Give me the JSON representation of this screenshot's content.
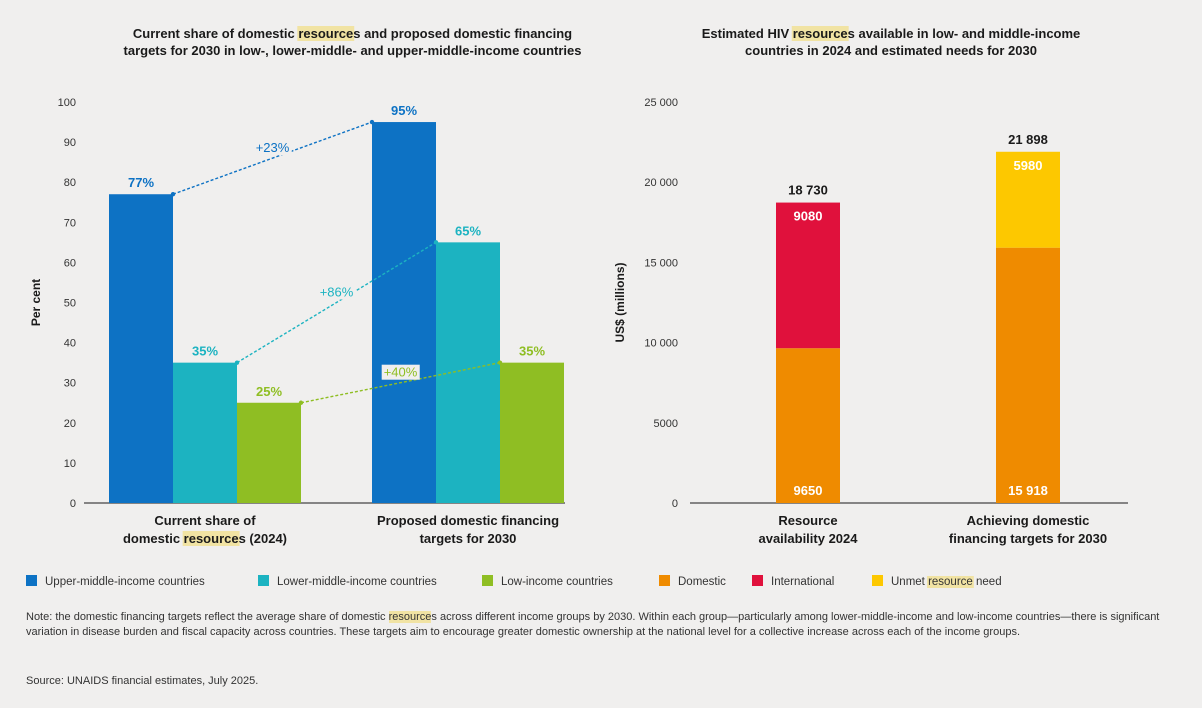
{
  "chart_data": [
    {
      "type": "bar",
      "title": "Current share of domestic resources and proposed domestic financing targets for 2030 in low-, lower-middle- and upper-middle-income countries",
      "title_lines": [
        "Current share of domestic resources and proposed domestic financing",
        "targets for 2030 in low-, lower-middle- and upper-middle-income countries"
      ],
      "ylabel": "Per cent",
      "ylim": [
        0,
        100
      ],
      "yticks": [
        0,
        10,
        20,
        30,
        40,
        50,
        60,
        70,
        80,
        90,
        100
      ],
      "categories": [
        "Current share of domestic resources (2024)",
        "Proposed domestic financing targets for 2030"
      ],
      "category_lines": [
        [
          "Current share of",
          "domestic resources (2024)"
        ],
        [
          "Proposed domestic financing",
          "targets for 2030"
        ]
      ],
      "series": [
        {
          "name": "Upper-middle-income countries",
          "color": "#0d72c4",
          "values": [
            77,
            95
          ],
          "labels": [
            "77%",
            "95%"
          ],
          "change": "+23%"
        },
        {
          "name": "Lower-middle-income countries",
          "color": "#1cb3c1",
          "values": [
            35,
            65
          ],
          "labels": [
            "35%",
            "65%"
          ],
          "change": "+86%"
        },
        {
          "name": "Low-income countries",
          "color": "#8fbe23",
          "values": [
            25,
            35
          ],
          "labels": [
            "25%",
            "35%"
          ],
          "change": "+40%"
        }
      ]
    },
    {
      "type": "bar",
      "stacked": true,
      "title": "Estimated HIV resources available in low- and middle-income countries in 2024 and estimated needs for 2030",
      "title_lines": [
        "Estimated HIV resources available in low- and middle-income",
        "countries in 2024 and estimated needs for 2030"
      ],
      "ylabel": "US$ (millions)",
      "ylim": [
        0,
        25000
      ],
      "yticks": [
        0,
        5000,
        10000,
        15000,
        20000,
        25000
      ],
      "ytick_labels": [
        "0",
        "5000",
        "10 000",
        "15 000",
        "20 000",
        "25 000"
      ],
      "categories": [
        "Resource availability 2024",
        "Achieving domestic financing targets for 2030"
      ],
      "category_lines": [
        [
          "Resource",
          "availability 2024"
        ],
        [
          "Achieving domestic",
          "financing targets for 2030"
        ]
      ],
      "series": [
        {
          "name": "Domestic",
          "color": "#ef8b00",
          "values": [
            9650,
            15918
          ],
          "labels": [
            "9650",
            "15 918"
          ]
        },
        {
          "name": "International",
          "color": "#e0113c",
          "values": [
            9080,
            0
          ],
          "labels": [
            "9080",
            ""
          ]
        },
        {
          "name": "Unmet resource need",
          "color": "#fdc800",
          "values": [
            0,
            5980
          ],
          "labels": [
            "",
            "5980"
          ]
        }
      ],
      "totals": [
        18730,
        21898
      ],
      "total_labels": [
        "18 730",
        "21 898"
      ]
    }
  ],
  "legend": [
    {
      "label": "Upper-middle-income countries",
      "color": "#0d72c4"
    },
    {
      "label": "Lower-middle-income countries",
      "color": "#1cb3c1"
    },
    {
      "label": "Low-income countries",
      "color": "#8fbe23"
    },
    {
      "label": "Domestic",
      "color": "#ef8b00"
    },
    {
      "label": "International",
      "color": "#e0113c"
    },
    {
      "label": "Unmet resource need",
      "color": "#fdc800"
    }
  ],
  "highlight_term": "resource",
  "note": "Note: the domestic financing targets reflect the average share of domestic resources across different income groups by 2030. Within each group—particularly among lower-middle-income and low-income countries—there is significant variation in disease burden and fiscal capacity across countries. These targets aim to encourage greater domestic ownership at the national level for a collective increase across each of the income groups.",
  "source": "Source: UNAIDS financial estimates, July 2025."
}
